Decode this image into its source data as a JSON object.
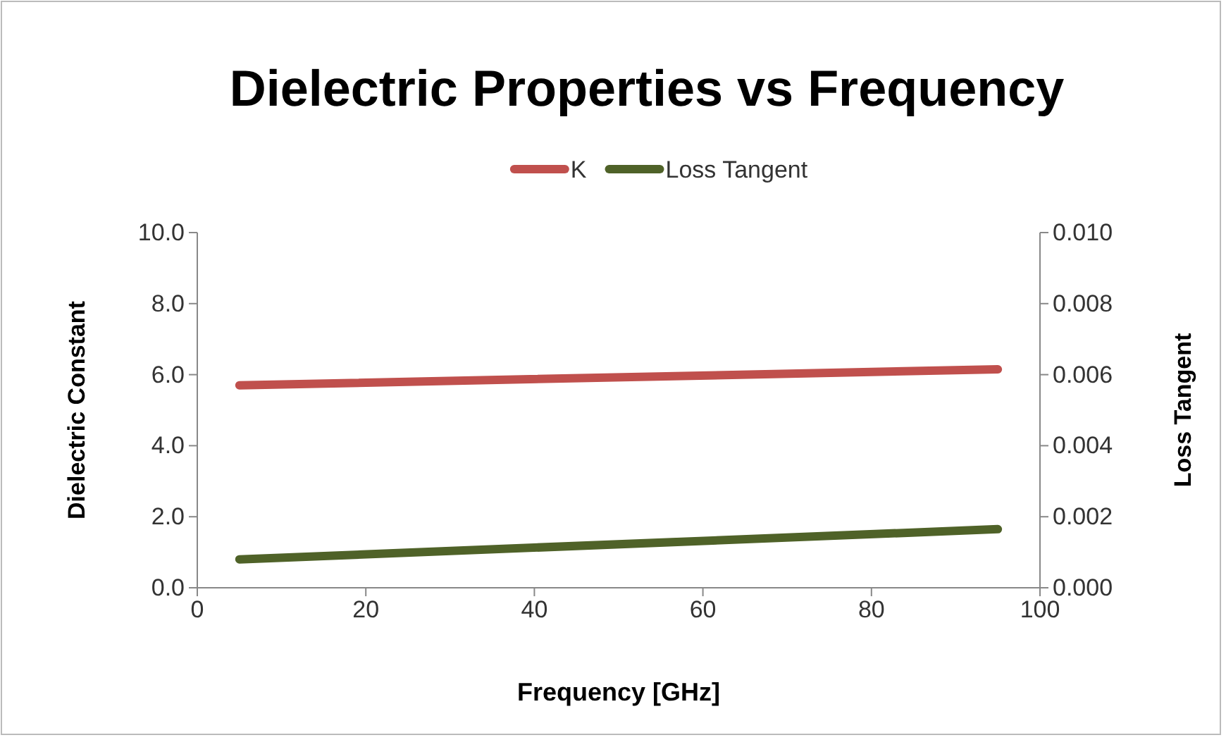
{
  "chart_data": {
    "type": "line",
    "title": "Dielectric Properties vs Frequency",
    "xlabel": "Frequency  [GHz]",
    "ylabel": "Dielectric Constant",
    "y2label": "Loss Tangent",
    "x": [
      5,
      95
    ],
    "series": [
      {
        "name": "K",
        "color": "#c0504d",
        "values": [
          5.7,
          6.15
        ]
      },
      {
        "name": "Loss Tangent",
        "color": "#4f6228",
        "axis": "y2",
        "values": [
          0.0008,
          0.00165
        ]
      }
    ],
    "xlim": [
      0,
      100
    ],
    "xticks": [
      0,
      20,
      40,
      60,
      80,
      100
    ],
    "ylim": [
      0,
      10
    ],
    "yticks": [
      {
        "value": 0,
        "label": "0.0"
      },
      {
        "value": 2,
        "label": "2.0"
      },
      {
        "value": 4,
        "label": "4.0"
      },
      {
        "value": 6,
        "label": "6.0"
      },
      {
        "value": 8,
        "label": "8.0"
      },
      {
        "value": 10,
        "label": "10.0"
      }
    ],
    "y2lim": [
      0,
      0.01
    ],
    "y2ticks": [
      {
        "value": 0,
        "label": "0.000"
      },
      {
        "value": 0.002,
        "label": "0.002"
      },
      {
        "value": 0.004,
        "label": "0.004"
      },
      {
        "value": 0.006,
        "label": "0.006"
      },
      {
        "value": 0.008,
        "label": "0.008"
      },
      {
        "value": 0.01,
        "label": "0.010"
      }
    ],
    "legend": "top",
    "marker": "none",
    "line_style": "solid",
    "grid": false
  }
}
